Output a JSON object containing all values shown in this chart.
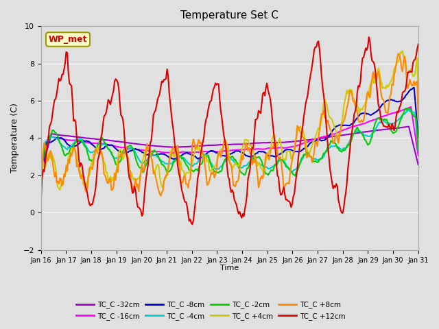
{
  "title": "Temperature Set C",
  "xlabel": "Time",
  "ylabel": "Temperature (C)",
  "ylim": [
    -2,
    10
  ],
  "plot_bg_color": "#e0e0e0",
  "annotation_text": "WP_met",
  "annotation_color": "#cc0000",
  "annotation_bg": "#ffffcc",
  "annotation_border": "#999900",
  "series": {
    "TC_C -32cm": {
      "color": "#9900cc",
      "lw": 1.5
    },
    "TC_C -16cm": {
      "color": "#ff00ff",
      "lw": 1.5
    },
    "TC_C -8cm": {
      "color": "#0000cc",
      "lw": 1.5
    },
    "TC_C -4cm": {
      "color": "#00cccc",
      "lw": 1.5
    },
    "TC_C -2cm": {
      "color": "#00cc00",
      "lw": 1.5
    },
    "TC_C +4cm": {
      "color": "#cccc00",
      "lw": 1.5
    },
    "TC_C +8cm": {
      "color": "#ff8800",
      "lw": 1.5
    },
    "TC_C +12cm": {
      "color": "#dd0000",
      "lw": 1.5
    }
  },
  "xtick_labels": [
    "Jan 16",
    "Jan 17",
    "Jan 18",
    "Jan 19",
    "Jan 20",
    "Jan 21",
    "Jan 22",
    "Jan 23",
    "Jan 24",
    "Jan 25",
    "Jan 26",
    "Jan 27",
    "Jan 28",
    "Jan 29",
    "Jan 30",
    "Jan 31"
  ],
  "n_points": 360
}
